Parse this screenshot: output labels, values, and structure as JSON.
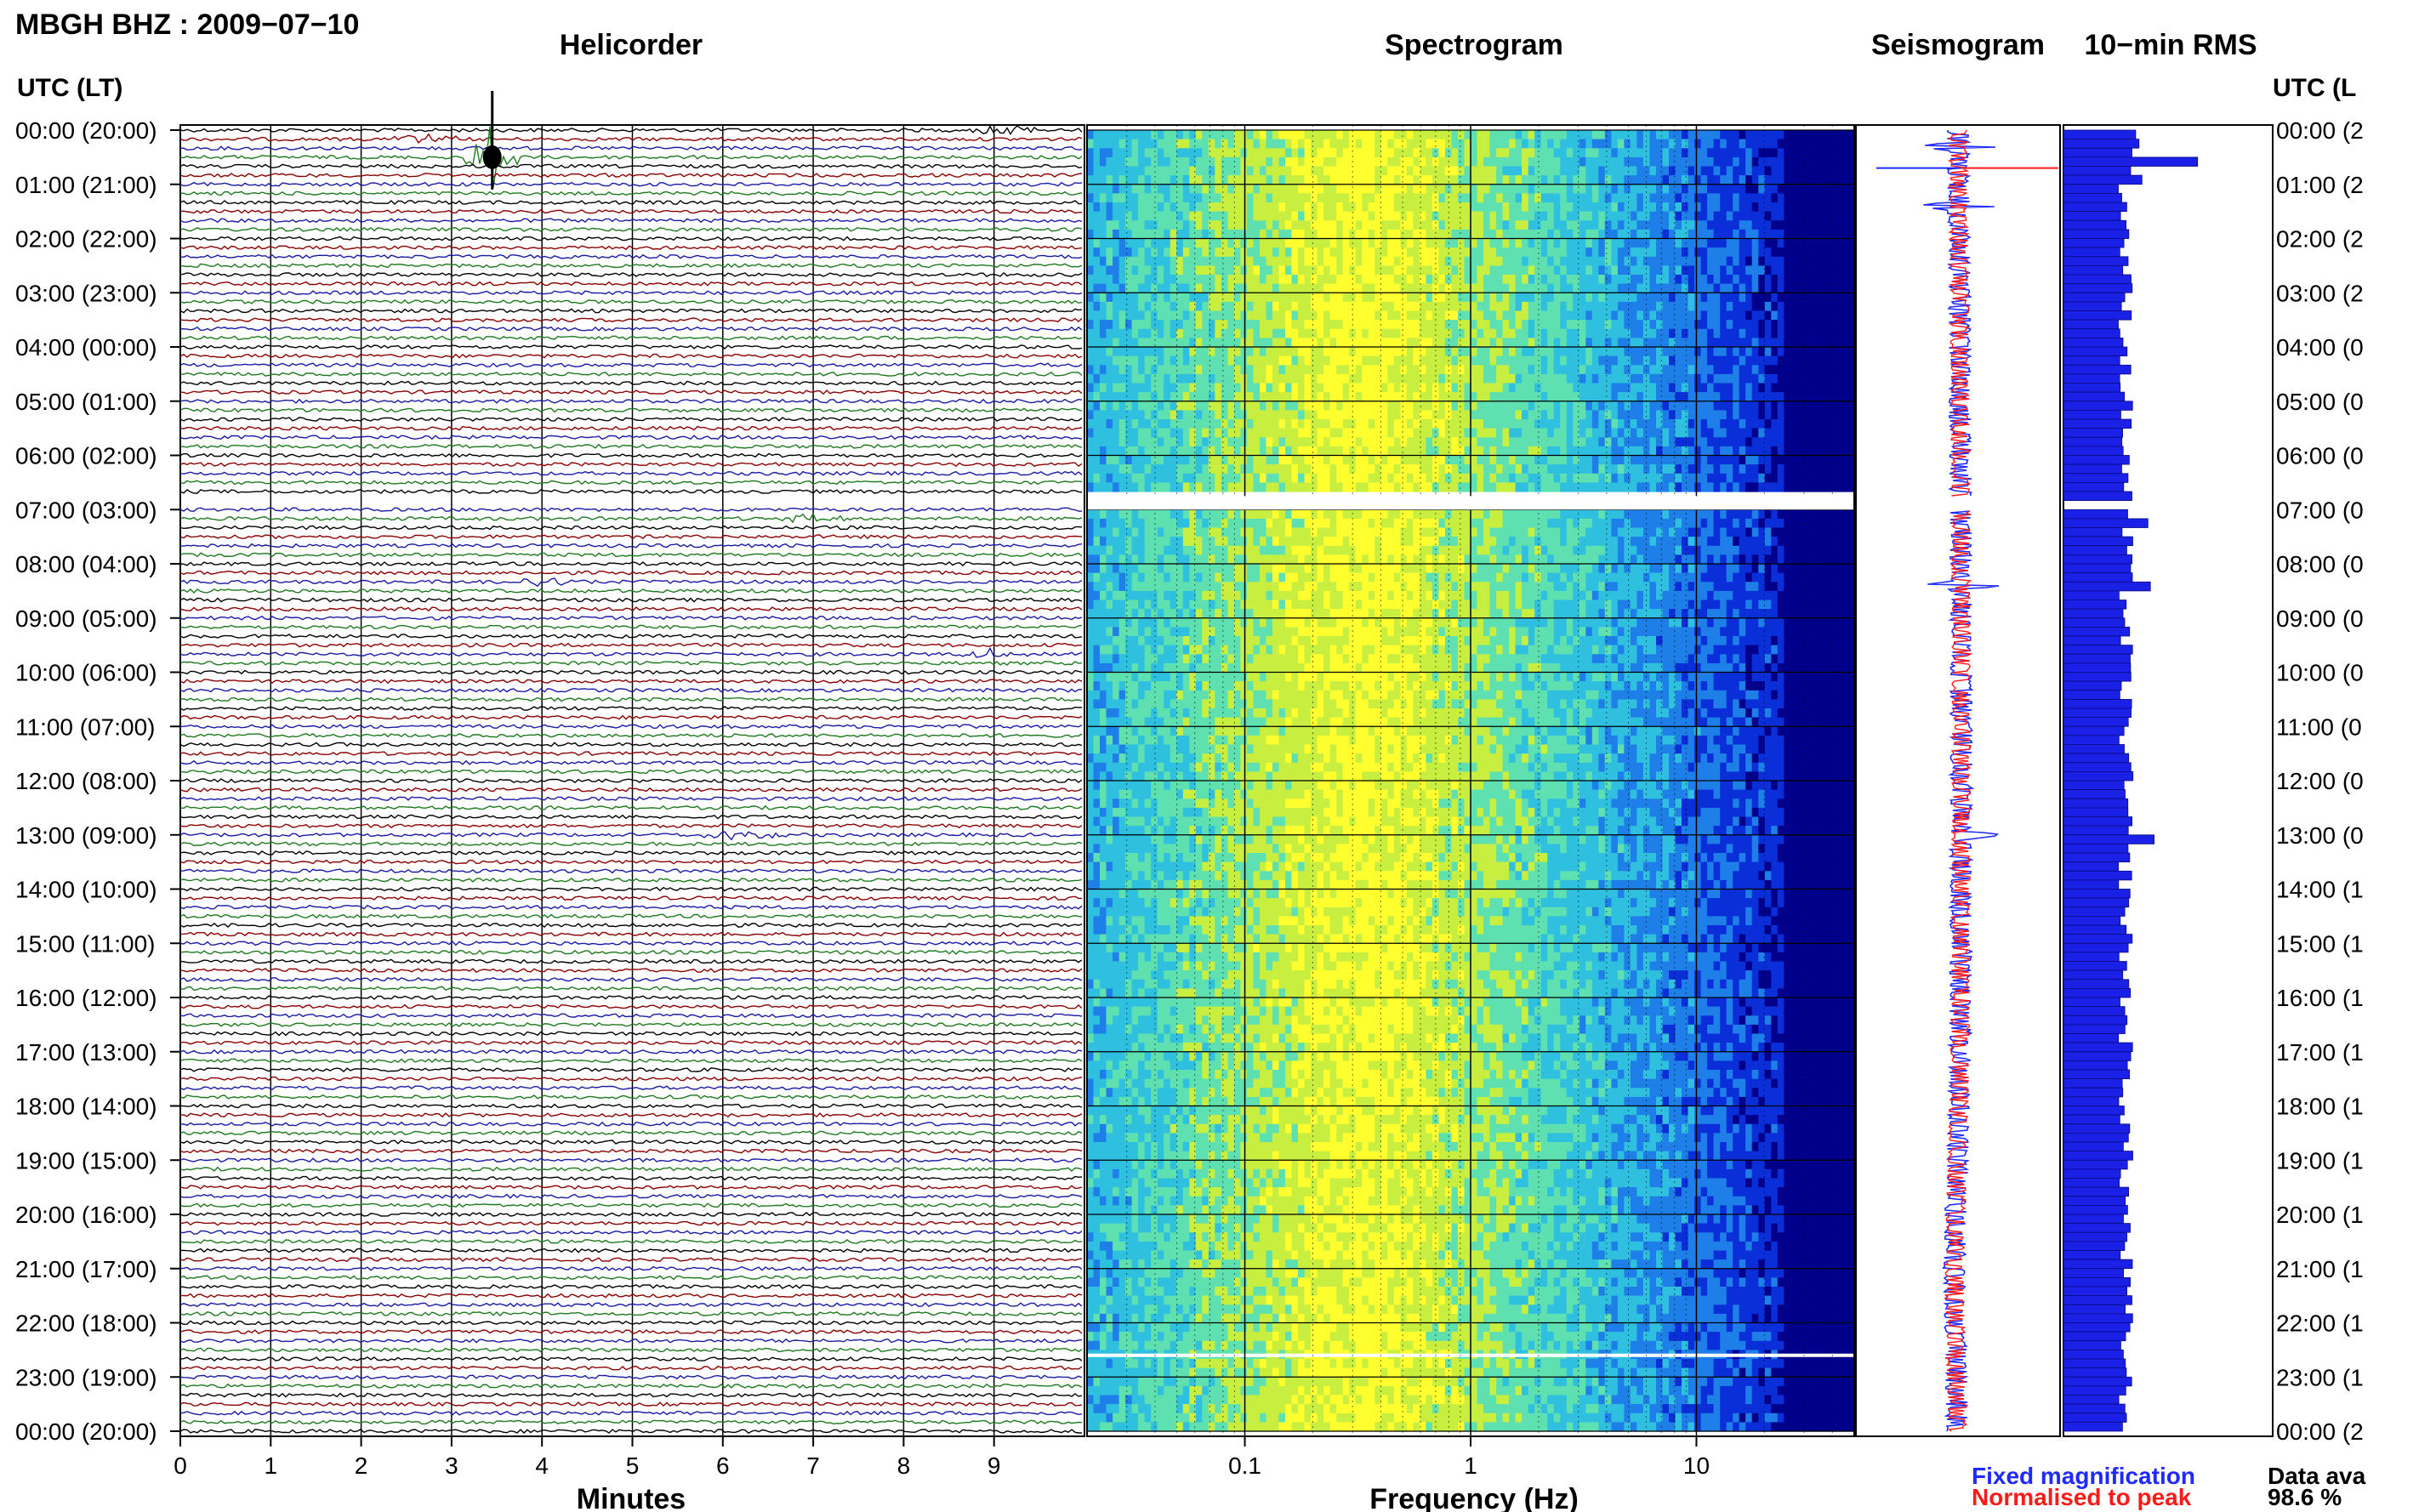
{
  "header": {
    "station_title": "MBGH BHZ : 2009−07−10",
    "helicorder_title": "Helicorder",
    "spectrogram_title": "Spectrogram",
    "seismogram_title": "Seismogram",
    "rms_title": "10−min RMS",
    "left_time_header": "UTC (LT)",
    "right_time_header": "UTC (L"
  },
  "axes": {
    "minutes_label": "Minutes",
    "frequency_label": "Frequency (Hz)",
    "minute_ticks": [
      "0",
      "1",
      "2",
      "3",
      "4",
      "5",
      "6",
      "7",
      "8",
      "9"
    ],
    "frequency_ticks": [
      "0.1",
      "1",
      "10"
    ]
  },
  "time_labels_left": [
    "00:00 (20:00)",
    "01:00 (21:00)",
    "02:00 (22:00)",
    "03:00 (23:00)",
    "04:00 (00:00)",
    "05:00 (01:00)",
    "06:00 (02:00)",
    "07:00 (03:00)",
    "08:00 (04:00)",
    "09:00 (05:00)",
    "10:00 (06:00)",
    "11:00 (07:00)",
    "12:00 (08:00)",
    "13:00 (09:00)",
    "14:00 (10:00)",
    "15:00 (11:00)",
    "16:00 (12:00)",
    "17:00 (13:00)",
    "18:00 (14:00)",
    "19:00 (15:00)",
    "20:00 (16:00)",
    "21:00 (17:00)",
    "22:00 (18:00)",
    "23:00 (19:00)",
    "00:00 (20:00)"
  ],
  "time_labels_right": [
    "00:00 (2",
    "01:00 (2",
    "02:00 (2",
    "03:00 (2",
    "04:00 (0",
    "05:00 (0",
    "06:00 (0",
    "07:00 (0",
    "08:00 (0",
    "09:00 (0",
    "10:00 (0",
    "11:00 (0",
    "12:00 (0",
    "13:00 (0",
    "14:00 (1",
    "15:00 (1",
    "16:00 (1",
    "17:00 (1",
    "18:00 (1",
    "19:00 (1",
    "20:00 (1",
    "21:00 (1",
    "22:00 (1",
    "23:00 (1",
    "00:00 (2"
  ],
  "legend": {
    "fixed_label": "Fixed magnification",
    "fixed_color": "#1f2aff",
    "normalised_label": "Normalised to peak",
    "normalised_color": "#ff1a1a",
    "availability_label": "Data ava",
    "availability_value": "98.6 %"
  },
  "colors": {
    "trace_cycle": [
      "#000000",
      "#8b0000",
      "#1a1aa6",
      "#1e7a1e"
    ],
    "rms_bar": "#1a20e6",
    "seis_fixed": "#1f2aff",
    "seis_norm": "#ff1a1a"
  },
  "chart_data": [
    {
      "type": "line",
      "name": "helicorder",
      "x_axis": "Minutes",
      "xlim": [
        0,
        10
      ],
      "y_axis": "UTC hour",
      "ylim": [
        0,
        24
      ],
      "rows_per_hour": 6,
      "gap_hours": [
        6.75,
        7.0
      ],
      "events": [
        {
          "hour": 0.17,
          "minute": 2.7,
          "amplitude": "small"
        },
        {
          "hour": 0.0,
          "minute": 9.1,
          "amplitude": "small"
        },
        {
          "hour": 0.5,
          "minute": 3.45,
          "amplitude": "large"
        },
        {
          "hour": 7.17,
          "minute": 7.0,
          "amplitude": "small"
        },
        {
          "hour": 8.33,
          "minute": 4.0,
          "amplitude": "small"
        },
        {
          "hour": 9.67,
          "minute": 9.0,
          "amplitude": "small"
        },
        {
          "hour": 13.0,
          "minute": 6.2,
          "amplitude": "medium"
        }
      ]
    },
    {
      "type": "heatmap",
      "name": "spectrogram",
      "x_axis": "Frequency (Hz)",
      "x_scale": "log",
      "xlim": [
        0.02,
        50
      ],
      "y_axis": "UTC hour",
      "ylim": [
        0,
        24
      ],
      "peak_frequency_hz": 0.35,
      "colormap": [
        "#00008b",
        "#0a2fd8",
        "#1f7fe8",
        "#2fc0e0",
        "#5fe0b0",
        "#c8ee40",
        "#ffff30"
      ],
      "gap_hours": [
        6.75,
        7.0
      ],
      "white_lines_hours": [
        22.6
      ]
    },
    {
      "type": "line",
      "name": "seismogram",
      "series": [
        {
          "name": "Fixed magnification"
        },
        {
          "name": "Normalised to peak"
        }
      ],
      "spikes_hours": [
        0.3,
        1.4,
        8.4,
        13.0
      ],
      "gap_hours": [
        6.75,
        7.0
      ]
    },
    {
      "type": "bar",
      "name": "rms",
      "orientation": "horizontal",
      "bin_minutes": 10,
      "gap_hours": [
        6.75,
        7.0
      ],
      "peaks": [
        {
          "hour": 0.5,
          "value": 1.0
        },
        {
          "hour": 7.2,
          "value": 0.68
        },
        {
          "hour": 8.3,
          "value": 0.7
        },
        {
          "hour": 13.0,
          "value": 0.73
        }
      ],
      "baseline": 0.5
    }
  ]
}
